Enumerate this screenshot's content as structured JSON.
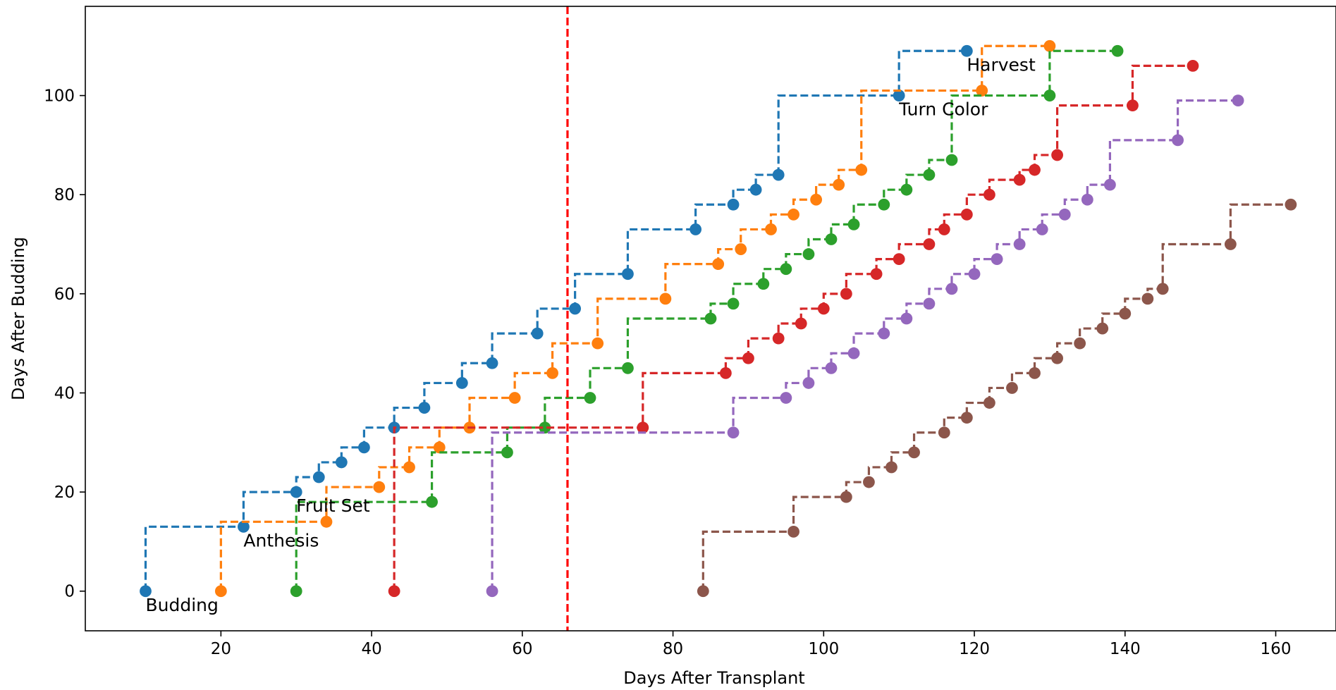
{
  "chart_data": {
    "type": "line",
    "style": "step-post, dashed, circle markers",
    "xlabel": "Days After Transplant",
    "ylabel": "Days After Budding",
    "xlim": [
      2,
      168
    ],
    "ylim": [
      -8,
      118
    ],
    "xticks": [
      20,
      40,
      60,
      80,
      100,
      120,
      140,
      160
    ],
    "yticks": [
      0,
      20,
      40,
      60,
      80,
      100
    ],
    "grid": false,
    "legend": "none",
    "vline": {
      "x": 66,
      "color": "#ff0000",
      "style": "dashed"
    },
    "annotations": [
      {
        "text": "Budding",
        "x": 10,
        "y": -4
      },
      {
        "text": "Anthesis",
        "x": 23,
        "y": 9
      },
      {
        "text": "Fruit Set",
        "x": 30,
        "y": 16
      },
      {
        "text": "Turn Color",
        "x": 110,
        "y": 96
      },
      {
        "text": "Harvest",
        "x": 119,
        "y": 105
      }
    ],
    "series": [
      {
        "color": "#1f77b4",
        "x": [
          10,
          23,
          30,
          33,
          36,
          39,
          43,
          47,
          52,
          56,
          62,
          67,
          74,
          83,
          88,
          91,
          94,
          110,
          119
        ],
        "y": [
          0,
          13,
          20,
          23,
          26,
          29,
          33,
          37,
          42,
          46,
          52,
          57,
          64,
          73,
          78,
          81,
          84,
          100,
          109
        ]
      },
      {
        "color": "#ff7f0e",
        "x": [
          20,
          34,
          41,
          45,
          49,
          53,
          59,
          64,
          70,
          79,
          86,
          89,
          93,
          96,
          99,
          102,
          105,
          121,
          130
        ],
        "y": [
          0,
          14,
          21,
          25,
          29,
          33,
          39,
          44,
          50,
          59,
          66,
          69,
          73,
          76,
          79,
          82,
          85,
          101,
          110
        ]
      },
      {
        "color": "#2ca02c",
        "x": [
          30,
          48,
          58,
          63,
          69,
          74,
          85,
          88,
          92,
          95,
          98,
          101,
          104,
          108,
          111,
          114,
          117,
          130,
          139
        ],
        "y": [
          0,
          18,
          28,
          33,
          39,
          45,
          55,
          58,
          62,
          65,
          68,
          71,
          74,
          78,
          81,
          84,
          87,
          100,
          109
        ]
      },
      {
        "color": "#d62728",
        "x": [
          43,
          76,
          87,
          90,
          94,
          97,
          100,
          103,
          107,
          110,
          114,
          116,
          119,
          122,
          126,
          128,
          131,
          141,
          149
        ],
        "y": [
          0,
          33,
          44,
          47,
          51,
          54,
          57,
          60,
          64,
          67,
          70,
          73,
          76,
          80,
          83,
          85,
          88,
          98,
          106
        ]
      },
      {
        "color": "#9467bd",
        "x": [
          56,
          88,
          95,
          98,
          101,
          104,
          108,
          111,
          114,
          117,
          120,
          123,
          126,
          129,
          132,
          135,
          138,
          147,
          155
        ],
        "y": [
          0,
          32,
          39,
          42,
          45,
          48,
          52,
          55,
          58,
          61,
          64,
          67,
          70,
          73,
          76,
          79,
          82,
          91,
          99
        ]
      },
      {
        "color": "#8c564b",
        "x": [
          84,
          96,
          103,
          106,
          109,
          112,
          116,
          119,
          122,
          125,
          128,
          131,
          134,
          137,
          140,
          143,
          145,
          154,
          162
        ],
        "y": [
          0,
          12,
          19,
          22,
          25,
          28,
          32,
          35,
          38,
          41,
          44,
          47,
          50,
          53,
          56,
          59,
          61,
          70,
          78
        ]
      }
    ]
  }
}
